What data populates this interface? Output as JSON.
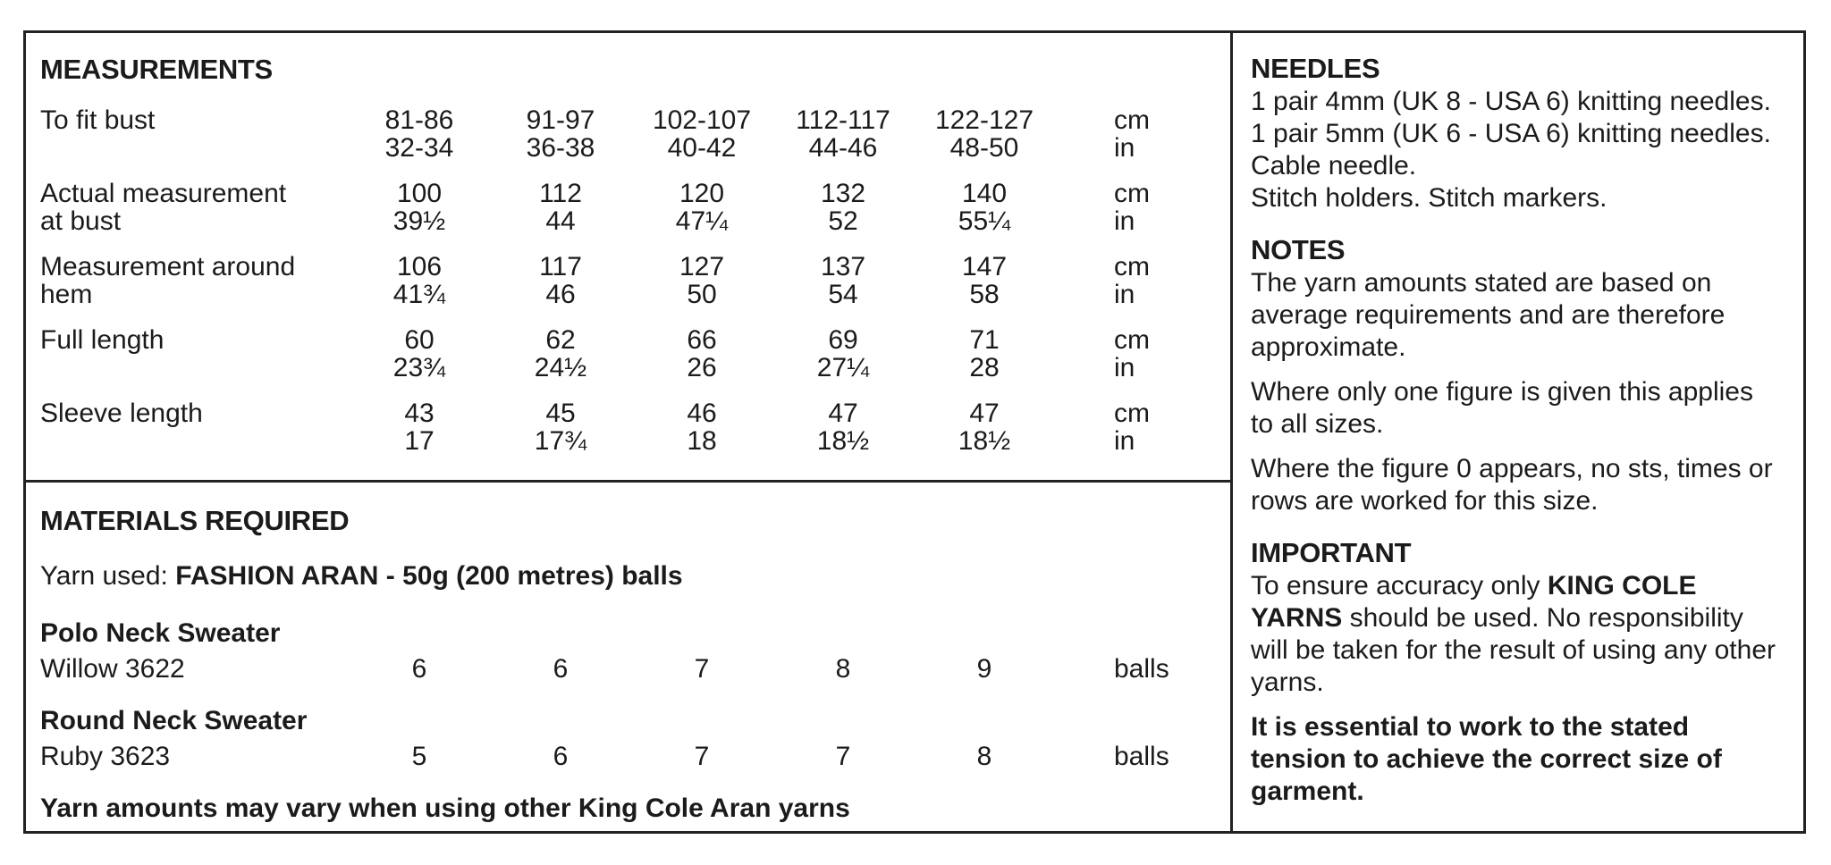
{
  "measurements": {
    "title": "MEASUREMENTS",
    "unit_cm": "cm",
    "unit_in": "in",
    "rows": [
      {
        "label": "To fit bust",
        "cm": [
          "81-86",
          "91-97",
          "102-107",
          "112-117",
          "122-127"
        ],
        "inch": [
          "32-34",
          "36-38",
          "40-42",
          "44-46",
          "48-50"
        ]
      },
      {
        "label": "Actual measurement at bust",
        "cm": [
          "100",
          "112",
          "120",
          "132",
          "140"
        ],
        "inch": [
          "39½",
          "44",
          "47¼",
          "52",
          "55¼"
        ]
      },
      {
        "label": "Measurement around hem",
        "cm": [
          "106",
          "117",
          "127",
          "137",
          "147"
        ],
        "inch": [
          "41¾",
          "46",
          "50",
          "54",
          "58"
        ]
      },
      {
        "label": "Full length",
        "cm": [
          "60",
          "62",
          "66",
          "69",
          "71"
        ],
        "inch": [
          "23¾",
          "24½",
          "26",
          "27¼",
          "28"
        ]
      },
      {
        "label": "Sleeve length",
        "cm": [
          "43",
          "45",
          "46",
          "47",
          "47"
        ],
        "inch": [
          "17",
          "17¾",
          "18",
          "18½",
          "18½"
        ]
      }
    ]
  },
  "materials": {
    "title": "MATERIALS REQUIRED",
    "yarn_used_label": "Yarn used: ",
    "yarn_used_value": "FASHION ARAN - 50g (200 metres) balls",
    "items": [
      {
        "name": "Polo Neck Sweater",
        "shade": "Willow 3622",
        "balls": [
          "6",
          "6",
          "7",
          "8",
          "9"
        ],
        "unit": "balls"
      },
      {
        "name": "Round Neck Sweater",
        "shade": "Ruby 3623",
        "balls": [
          "5",
          "6",
          "7",
          "7",
          "8"
        ],
        "unit": "balls"
      }
    ],
    "note": "Yarn amounts may vary when using other King Cole Aran yarns"
  },
  "needles": {
    "title": "NEEDLES",
    "lines": [
      "1 pair 4mm (UK 8 - USA 6) knitting needles.",
      "1 pair 5mm (UK 6 - USA 6) knitting needles.",
      "Cable needle.",
      "Stitch holders. Stitch markers."
    ]
  },
  "notes": {
    "title": "NOTES",
    "paragraphs": [
      "The yarn amounts stated are based on average requirements and are therefore approximate.",
      "Where only one figure is given this applies to all sizes.",
      "Where the figure 0 appears, no sts, times or rows are worked for this size."
    ]
  },
  "important": {
    "title": "IMPORTANT",
    "p1_before": "To ensure accuracy only ",
    "p1_bold": "KING COLE YARNS",
    "p1_after": " should be used. No responsibility will be taken for the result of using any other yarns.",
    "p2": "It is essential to work to the stated tension to achieve the correct size of garment."
  }
}
